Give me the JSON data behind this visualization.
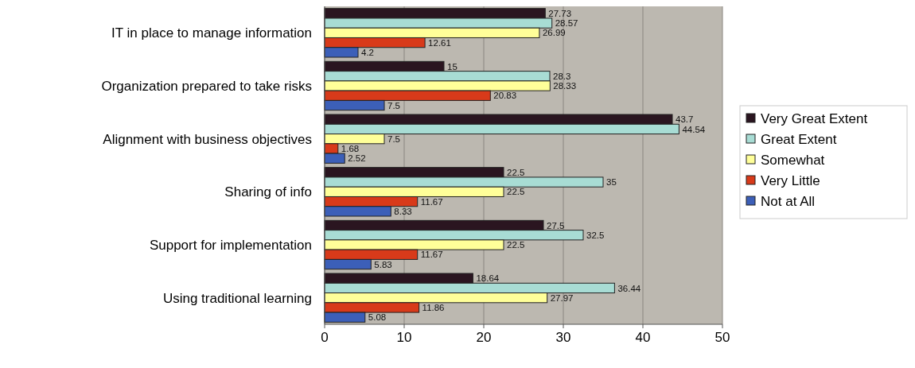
{
  "chart_data": {
    "type": "bar",
    "orientation": "horizontal",
    "categories": [
      "IT in place to manage information",
      "Organization prepared to take risks",
      "Alignment with business objectives",
      "Sharing of info",
      "Support for implementation",
      "Using traditional learning"
    ],
    "series": [
      {
        "name": "Very Great Extent",
        "color": "#2a1520",
        "values": [
          27.73,
          15,
          43.7,
          22.5,
          27.5,
          18.64
        ]
      },
      {
        "name": "Great Extent",
        "color": "#a8dcd4",
        "values": [
          28.57,
          28.3,
          44.54,
          35,
          32.5,
          36.44
        ]
      },
      {
        "name": "Somewhat",
        "color": "#ffff99",
        "values": [
          26.99,
          28.33,
          7.5,
          22.5,
          22.5,
          27.97
        ]
      },
      {
        "name": "Very Little",
        "color": "#d83a1a",
        "values": [
          12.61,
          20.83,
          1.68,
          11.67,
          11.67,
          11.86
        ]
      },
      {
        "name": "Not at All",
        "color": "#3c5fb8",
        "values": [
          4.2,
          7.5,
          2.52,
          8.33,
          5.83,
          5.08
        ]
      }
    ],
    "xlim": [
      0,
      50
    ],
    "xticks": [
      0,
      10,
      20,
      30,
      40,
      50
    ],
    "grid": "x",
    "legend": "right",
    "data_labels": true
  }
}
